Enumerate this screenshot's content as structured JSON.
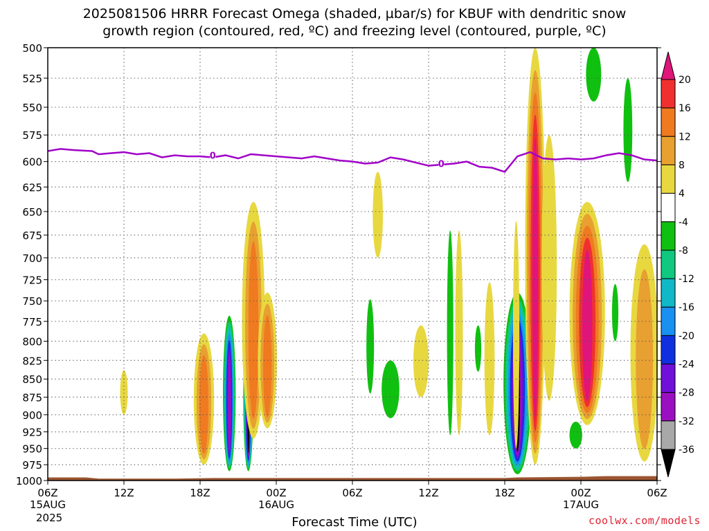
{
  "title_line1": "2025081506 HRRR Forecast Omega (shaded, µbar/s) for KBUF with dendritic snow",
  "title_line2": "growth region (contoured, red, ºC) and freezing level (contoured, purple, ºC)",
  "credit": "coolwx.com/models",
  "colors": {
    "freezing_level": "#a000c8",
    "ground": "#9a5530",
    "grid": "#555555"
  },
  "chart_data": {
    "type": "heatmap",
    "xlabel": "Forecast Time (UTC)",
    "x_ticks": [
      {
        "hours": 0,
        "label": "06Z",
        "sub": "15AUG"
      },
      {
        "hours": 6,
        "label": "12Z",
        "sub": ""
      },
      {
        "hours": 12,
        "label": "18Z",
        "sub": ""
      },
      {
        "hours": 18,
        "label": "00Z",
        "sub": "16AUG"
      },
      {
        "hours": 24,
        "label": "06Z",
        "sub": ""
      },
      {
        "hours": 30,
        "label": "12Z",
        "sub": ""
      },
      {
        "hours": 36,
        "label": "18Z",
        "sub": ""
      },
      {
        "hours": 42,
        "label": "00Z",
        "sub": "17AUG"
      },
      {
        "hours": 48,
        "label": "06Z",
        "sub": ""
      }
    ],
    "year_label": "2025",
    "xlim": [
      0,
      48
    ],
    "y_ticks": [
      500,
      525,
      550,
      575,
      600,
      625,
      650,
      675,
      700,
      725,
      750,
      775,
      800,
      825,
      850,
      875,
      900,
      925,
      950,
      975,
      1000
    ],
    "ylim": [
      500,
      1000
    ],
    "y_scale": "log",
    "grid": true,
    "colorbar": {
      "levels": [
        {
          "value": "20",
          "color": "#e0157a"
        },
        {
          "value": "16",
          "color": "#f03030"
        },
        {
          "value": "12",
          "color": "#f07a20"
        },
        {
          "value": "8",
          "color": "#e8a030"
        },
        {
          "value": "4",
          "color": "#e8d840"
        },
        {
          "value": "-4",
          "color": "#ffffff"
        },
        {
          "value": "-8",
          "color": "#10c010"
        },
        {
          "value": "-12",
          "color": "#10c880"
        },
        {
          "value": "-16",
          "color": "#10b8c8"
        },
        {
          "value": "-20",
          "color": "#1a90f0"
        },
        {
          "value": "-24",
          "color": "#1030e0"
        },
        {
          "value": "-28",
          "color": "#7010d8"
        },
        {
          "value": "-32",
          "color": "#9a10c0"
        },
        {
          "value": "-36",
          "color": "#a8a8a8"
        }
      ],
      "top_color": "#e0157a",
      "bottom_color": "#000000"
    },
    "freezing_level_label": "0",
    "freezing_level": [
      [
        0,
        590
      ],
      [
        1,
        588
      ],
      [
        2,
        589
      ],
      [
        3.5,
        590
      ],
      [
        4,
        593
      ],
      [
        5,
        592
      ],
      [
        6,
        591
      ],
      [
        7,
        593
      ],
      [
        8,
        592
      ],
      [
        9,
        596
      ],
      [
        10,
        594
      ],
      [
        11,
        595
      ],
      [
        12,
        595
      ],
      [
        13,
        596
      ],
      [
        14,
        594
      ],
      [
        15,
        597
      ],
      [
        16,
        593
      ],
      [
        17,
        594
      ],
      [
        18,
        595
      ],
      [
        19,
        596
      ],
      [
        20,
        597
      ],
      [
        21,
        595
      ],
      [
        22,
        597
      ],
      [
        23,
        599
      ],
      [
        24,
        600
      ],
      [
        25,
        602
      ],
      [
        26,
        601
      ],
      [
        27,
        596
      ],
      [
        28,
        598
      ],
      [
        29,
        601
      ],
      [
        30,
        604
      ],
      [
        31,
        603
      ],
      [
        32,
        602
      ],
      [
        33,
        600
      ],
      [
        34,
        605
      ],
      [
        35,
        606
      ],
      [
        36,
        610
      ],
      [
        37,
        595
      ],
      [
        38,
        591
      ],
      [
        39,
        597
      ],
      [
        40,
        598
      ],
      [
        41,
        597
      ],
      [
        42,
        598
      ],
      [
        43,
        597
      ],
      [
        44,
        594
      ],
      [
        45,
        592
      ],
      [
        46,
        594
      ],
      [
        47,
        598
      ],
      [
        48,
        599
      ]
    ],
    "freezing_level_label_positions": [
      [
        13,
        594
      ],
      [
        31,
        602
      ]
    ],
    "ground_pressure": [
      [
        0,
        995
      ],
      [
        3,
        995
      ],
      [
        4,
        997
      ],
      [
        10,
        997
      ],
      [
        13,
        996
      ],
      [
        18,
        996
      ],
      [
        26,
        996
      ],
      [
        36,
        996
      ],
      [
        37,
        995
      ],
      [
        42,
        994
      ],
      [
        44,
        993
      ],
      [
        48,
        993
      ]
    ],
    "omega_features": [
      {
        "time": 6.0,
        "bottom": 900,
        "top": 838,
        "width": 0.6,
        "levels": [
          4
        ]
      },
      {
        "time": 12.3,
        "bottom": 975,
        "top": 790,
        "width": 1.6,
        "levels": [
          4,
          8,
          12
        ]
      },
      {
        "time": 14.3,
        "bottom": 985,
        "top": 768,
        "width": 1.0,
        "levels": [
          -8,
          -12,
          -16,
          -20,
          -24,
          -28,
          -32
        ]
      },
      {
        "time": 15.8,
        "bottom": 985,
        "top": 780,
        "width": 0.8,
        "levels": [
          -8,
          -12,
          -16,
          -20,
          -24,
          -28,
          -32,
          -36
        ]
      },
      {
        "time": 16.2,
        "bottom": 935,
        "top": 640,
        "width": 1.8,
        "levels": [
          4,
          8,
          12
        ]
      },
      {
        "time": 17.3,
        "bottom": 920,
        "top": 740,
        "width": 1.5,
        "levels": [
          4,
          8,
          12
        ]
      },
      {
        "time": 26.0,
        "bottom": 700,
        "top": 610,
        "width": 0.8,
        "levels": [
          4
        ]
      },
      {
        "time": 25.4,
        "bottom": 870,
        "top": 748,
        "width": 0.6,
        "levels": [
          -8
        ]
      },
      {
        "time": 27.0,
        "bottom": 905,
        "top": 825,
        "width": 1.4,
        "levels": [
          -8
        ]
      },
      {
        "time": 29.4,
        "bottom": 875,
        "top": 780,
        "width": 1.2,
        "levels": [
          4
        ]
      },
      {
        "time": 31.7,
        "bottom": 930,
        "top": 670,
        "width": 0.5,
        "levels": [
          -8
        ]
      },
      {
        "time": 32.4,
        "bottom": 930,
        "top": 670,
        "width": 0.6,
        "levels": [
          4
        ]
      },
      {
        "time": 33.9,
        "bottom": 840,
        "top": 780,
        "width": 0.5,
        "levels": [
          -8
        ]
      },
      {
        "time": 34.8,
        "bottom": 930,
        "top": 728,
        "width": 0.8,
        "levels": [
          4
        ]
      },
      {
        "time": 37.0,
        "bottom": 990,
        "top": 740,
        "width": 2.2,
        "levels": [
          -8,
          -12,
          -16,
          -20,
          -24,
          -28,
          -32,
          -36
        ]
      },
      {
        "time": 36.9,
        "bottom": 950,
        "top": 660,
        "width": 0.5,
        "levels": [
          4
        ]
      },
      {
        "time": 38.4,
        "bottom": 975,
        "top": 500,
        "width": 1.6,
        "levels": [
          4,
          8,
          12,
          16,
          20
        ]
      },
      {
        "time": 39.5,
        "bottom": 880,
        "top": 575,
        "width": 1.2,
        "levels": [
          4
        ]
      },
      {
        "time": 42.5,
        "bottom": 915,
        "top": 640,
        "width": 2.8,
        "levels": [
          4,
          8,
          12,
          16,
          20
        ]
      },
      {
        "time": 41.6,
        "bottom": 950,
        "top": 910,
        "width": 1.0,
        "levels": [
          -8
        ]
      },
      {
        "time": 43.0,
        "bottom": 545,
        "top": 500,
        "width": 1.2,
        "levels": [
          -8
        ]
      },
      {
        "time": 44.7,
        "bottom": 800,
        "top": 730,
        "width": 0.5,
        "levels": [
          -8
        ]
      },
      {
        "time": 45.7,
        "bottom": 620,
        "top": 525,
        "width": 0.7,
        "levels": [
          -8
        ]
      },
      {
        "time": 47.0,
        "bottom": 970,
        "top": 685,
        "width": 2.2,
        "levels": [
          4,
          8
        ]
      }
    ]
  }
}
